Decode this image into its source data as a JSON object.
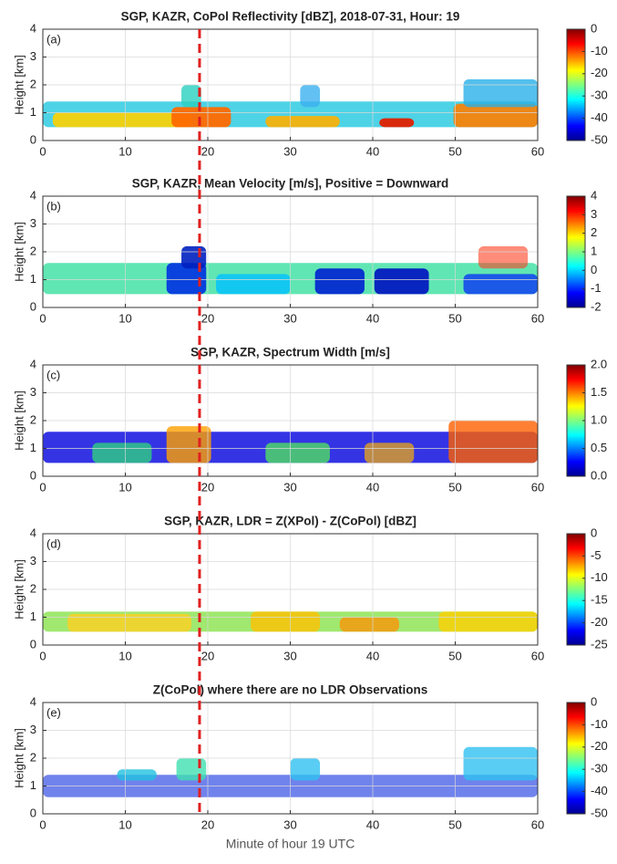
{
  "chart_data": [
    {
      "type": "heatmap",
      "title": "SGP, KAZR, CoPol Reflectivity [dBZ], 2018-07-31, Hour: 19",
      "panel_label": "(a)",
      "ylabel": "Height [km]",
      "xlim": [
        0,
        60
      ],
      "xticks": [
        0,
        10,
        20,
        30,
        40,
        50,
        60
      ],
      "ylim": [
        0,
        4
      ],
      "yticks": [
        0,
        1,
        2,
        3,
        4
      ],
      "grid": true,
      "colormap": "jet",
      "colorbar": {
        "lim": [
          -50,
          0
        ],
        "ticks": [
          -50,
          -40,
          -30,
          -20,
          -10,
          0
        ]
      }
    },
    {
      "type": "heatmap",
      "title": "SGP, KAZR, Mean Velocity [m/s], Positive = Downward",
      "panel_label": "(b)",
      "ylabel": "Height [km]",
      "xlim": [
        0,
        60
      ],
      "xticks": [
        0,
        10,
        20,
        30,
        40,
        50,
        60
      ],
      "ylim": [
        0,
        4
      ],
      "yticks": [
        0,
        1,
        2,
        3,
        4
      ],
      "grid": true,
      "colormap": "jet",
      "colorbar": {
        "lim": [
          -2,
          4
        ],
        "ticks": [
          -2,
          -1,
          0,
          1,
          2,
          3,
          4
        ]
      }
    },
    {
      "type": "heatmap",
      "title": "SGP, KAZR, Spectrum Width [m/s]",
      "panel_label": "(c)",
      "ylabel": "Height [km]",
      "xlim": [
        0,
        60
      ],
      "xticks": [
        0,
        10,
        20,
        30,
        40,
        50,
        60
      ],
      "ylim": [
        0,
        4
      ],
      "yticks": [
        0,
        1,
        2,
        3,
        4
      ],
      "grid": true,
      "colormap": "jet",
      "colorbar": {
        "lim": [
          0,
          2
        ],
        "ticks": [
          {
            "value": 0,
            "label": "0.0"
          },
          {
            "value": 0.5,
            "label": "0.5"
          },
          {
            "value": 1,
            "label": "1.0"
          },
          {
            "value": 1.5,
            "label": "1.5"
          },
          {
            "value": 2,
            "label": "2.0"
          }
        ]
      }
    },
    {
      "type": "heatmap",
      "title": "SGP, KAZR, LDR = Z(XPol) - Z(CoPol) [dBZ]",
      "panel_label": "(d)",
      "ylabel": "Height [km]",
      "xlim": [
        0,
        60
      ],
      "xticks": [
        0,
        10,
        20,
        30,
        40,
        50,
        60
      ],
      "ylim": [
        0,
        4
      ],
      "yticks": [
        0,
        1,
        2,
        3,
        4
      ],
      "grid": true,
      "colormap": "jet",
      "colorbar": {
        "lim": [
          -25,
          0
        ],
        "ticks": [
          -25,
          -20,
          -15,
          -10,
          -5,
          0
        ]
      }
    },
    {
      "type": "heatmap",
      "title": "Z(CoPol) where there are no LDR Observations",
      "panel_label": "(e)",
      "ylabel": "Height [km]",
      "xlabel": "Minute of hour 19 UTC",
      "xlim": [
        0,
        60
      ],
      "xticks": [
        0,
        10,
        20,
        30,
        40,
        50,
        60
      ],
      "ylim": [
        0,
        4
      ],
      "yticks": [
        0,
        1,
        2,
        3,
        4
      ],
      "grid": true,
      "colormap": "jet",
      "colorbar": {
        "lim": [
          -50,
          0
        ],
        "ticks": [
          -50,
          -40,
          -30,
          -20,
          -10,
          0
        ]
      }
    }
  ],
  "marker": {
    "x": 19,
    "color": "#e02020"
  }
}
